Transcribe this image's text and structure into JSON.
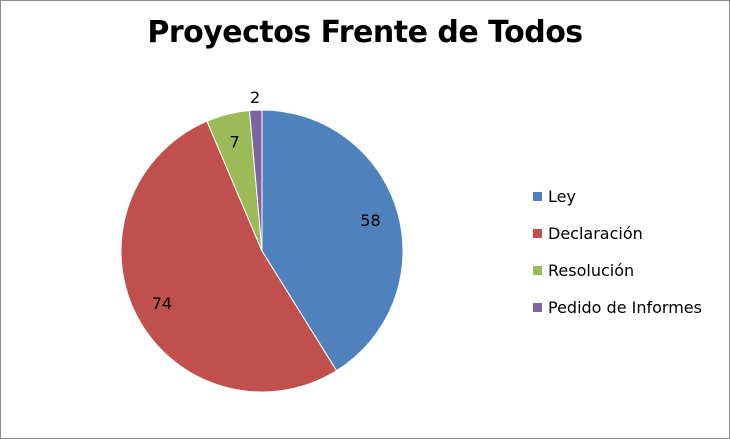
{
  "chart_data": {
    "type": "pie",
    "title": "Proyectos Frente de Todos",
    "categories": [
      "Ley",
      "Declaración",
      "Resolución",
      "Pedido de Informes"
    ],
    "values": [
      58,
      74,
      7,
      2
    ],
    "colors": [
      "#4f81bd",
      "#c0504d",
      "#9bbb59",
      "#8064a2"
    ],
    "start_angle_deg": 0,
    "direction": "clockwise",
    "legend_position": "right"
  }
}
